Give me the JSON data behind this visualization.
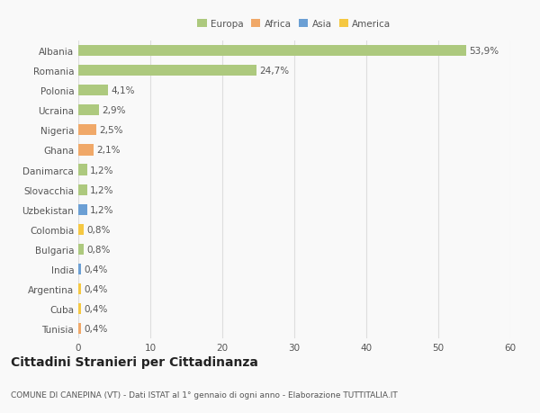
{
  "countries": [
    "Albania",
    "Romania",
    "Polonia",
    "Ucraina",
    "Nigeria",
    "Ghana",
    "Danimarca",
    "Slovacchia",
    "Uzbekistan",
    "Colombia",
    "Bulgaria",
    "India",
    "Argentina",
    "Cuba",
    "Tunisia"
  ],
  "values": [
    53.9,
    24.7,
    4.1,
    2.9,
    2.5,
    2.1,
    1.2,
    1.2,
    1.2,
    0.8,
    0.8,
    0.4,
    0.4,
    0.4,
    0.4
  ],
  "labels": [
    "53,9%",
    "24,7%",
    "4,1%",
    "2,9%",
    "2,5%",
    "2,1%",
    "1,2%",
    "1,2%",
    "1,2%",
    "0,8%",
    "0,8%",
    "0,4%",
    "0,4%",
    "0,4%",
    "0,4%"
  ],
  "colors": [
    "#adc97e",
    "#adc97e",
    "#adc97e",
    "#adc97e",
    "#f0a868",
    "#f0a868",
    "#adc97e",
    "#adc97e",
    "#6b9fd4",
    "#f5c842",
    "#adc97e",
    "#6b9fd4",
    "#f5c842",
    "#f5c842",
    "#f0a868"
  ],
  "legend_labels": [
    "Europa",
    "Africa",
    "Asia",
    "America"
  ],
  "legend_colors": [
    "#adc97e",
    "#f0a868",
    "#6b9fd4",
    "#f5c842"
  ],
  "xlim": [
    0,
    60
  ],
  "xticks": [
    0,
    10,
    20,
    30,
    40,
    50,
    60
  ],
  "title": "Cittadini Stranieri per Cittadinanza",
  "subtitle": "COMUNE DI CANEPINA (VT) - Dati ISTAT al 1° gennaio di ogni anno - Elaborazione TUTTITALIA.IT",
  "bg_color": "#f9f9f9",
  "bar_height": 0.55,
  "grid_color": "#dddddd",
  "text_color": "#555555",
  "label_fontsize": 7.5,
  "tick_fontsize": 7.5,
  "title_fontsize": 10,
  "subtitle_fontsize": 6.5
}
